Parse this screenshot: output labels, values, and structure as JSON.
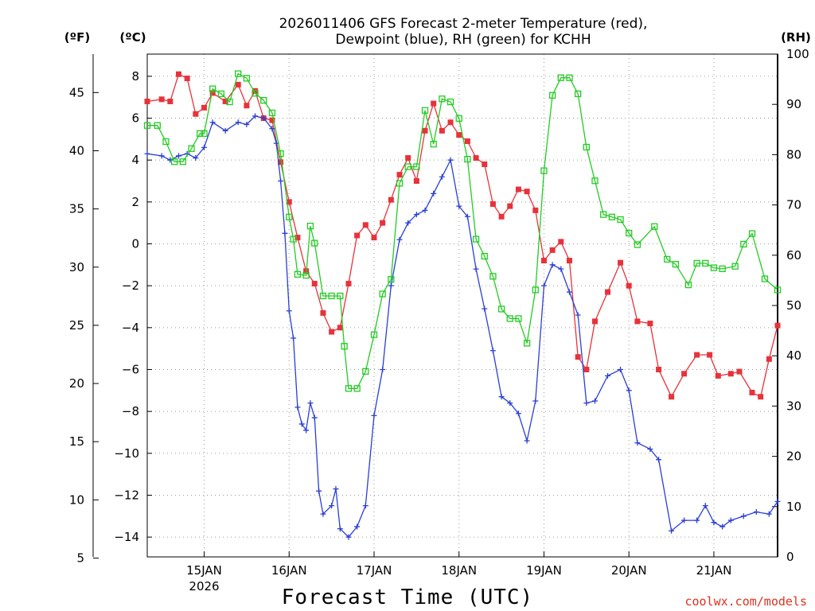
{
  "chart_data": {
    "type": "line",
    "title_line1": "2026011406 GFS Forecast 2-meter Temperature (red),",
    "title_line2": "Dewpoint (blue), RH (green) for KCHH",
    "xlabel": "Forecast Time (UTC)",
    "credit": "coolwx.com/models",
    "units": {
      "fahrenheit": "(ºF)",
      "celsius": "(ºC)",
      "rh": "(RH)"
    },
    "x_axis": {
      "start_day": 14.33,
      "end_day": 21.75,
      "grid_days": [
        15,
        16,
        17,
        18,
        19,
        20,
        21
      ]
    },
    "x_ticks": [
      {
        "day": 15,
        "label": "15JAN",
        "sub": "2026"
      },
      {
        "day": 16,
        "label": "16JAN",
        "sub": ""
      },
      {
        "day": 17,
        "label": "17JAN",
        "sub": ""
      },
      {
        "day": 18,
        "label": "18JAN",
        "sub": ""
      },
      {
        "day": 19,
        "label": "19JAN",
        "sub": ""
      },
      {
        "day": 20,
        "label": "20JAN",
        "sub": ""
      },
      {
        "day": 21,
        "label": "21JAN",
        "sub": ""
      }
    ],
    "y_celsius": {
      "min": -15,
      "max": 9,
      "ticks": [
        "8",
        "6",
        "4",
        "2",
        "0",
        "−2",
        "−4",
        "−6",
        "−8",
        "−10",
        "−12",
        "−14"
      ]
    },
    "y_fahrenheit": {
      "ticks": [
        "45",
        "40",
        "35",
        "30",
        "25",
        "20",
        "15",
        "10",
        "5"
      ]
    },
    "y_rh": {
      "min": 0,
      "max": 100,
      "ticks": [
        "100",
        "90",
        "80",
        "70",
        "60",
        "50",
        "40",
        "30",
        "20",
        "10",
        "0"
      ]
    },
    "series": [
      {
        "name": "2-meter Temperature",
        "color": "#e8323a",
        "marker": "square-filled",
        "axis": "celsius",
        "points": [
          [
            14.33,
            6.8
          ],
          [
            14.5,
            6.9
          ],
          [
            14.6,
            6.8
          ],
          [
            14.7,
            8.1
          ],
          [
            14.8,
            7.9
          ],
          [
            14.9,
            6.2
          ],
          [
            15.0,
            6.5
          ],
          [
            15.1,
            7.2
          ],
          [
            15.25,
            6.8
          ],
          [
            15.4,
            7.6
          ],
          [
            15.5,
            6.6
          ],
          [
            15.6,
            7.3
          ],
          [
            15.7,
            6.0
          ],
          [
            15.8,
            5.9
          ],
          [
            15.9,
            3.9
          ],
          [
            16.0,
            2.0
          ],
          [
            16.1,
            0.3
          ],
          [
            16.2,
            -1.3
          ],
          [
            16.3,
            -1.9
          ],
          [
            16.4,
            -3.3
          ],
          [
            16.5,
            -4.2
          ],
          [
            16.6,
            -4.0
          ],
          [
            16.7,
            -1.9
          ],
          [
            16.8,
            0.4
          ],
          [
            16.9,
            0.9
          ],
          [
            17.0,
            0.3
          ],
          [
            17.1,
            1.0
          ],
          [
            17.2,
            2.1
          ],
          [
            17.3,
            3.3
          ],
          [
            17.4,
            4.1
          ],
          [
            17.5,
            3.0
          ],
          [
            17.6,
            5.4
          ],
          [
            17.7,
            6.7
          ],
          [
            17.8,
            5.4
          ],
          [
            17.9,
            5.8
          ],
          [
            18.0,
            5.2
          ],
          [
            18.1,
            4.9
          ],
          [
            18.2,
            4.1
          ],
          [
            18.3,
            3.8
          ],
          [
            18.4,
            1.9
          ],
          [
            18.5,
            1.3
          ],
          [
            18.6,
            1.8
          ],
          [
            18.7,
            2.6
          ],
          [
            18.8,
            2.5
          ],
          [
            18.9,
            1.6
          ],
          [
            19.0,
            -0.8
          ],
          [
            19.1,
            -0.3
          ],
          [
            19.2,
            0.1
          ],
          [
            19.3,
            -0.8
          ],
          [
            19.4,
            -5.4
          ],
          [
            19.5,
            -6.0
          ],
          [
            19.6,
            -3.7
          ],
          [
            19.75,
            -2.3
          ],
          [
            19.9,
            -0.9
          ],
          [
            20.0,
            -2.0
          ],
          [
            20.1,
            -3.7
          ],
          [
            20.25,
            -3.8
          ],
          [
            20.35,
            -6.0
          ],
          [
            20.5,
            -7.3
          ],
          [
            20.65,
            -6.2
          ],
          [
            20.8,
            -5.3
          ],
          [
            20.95,
            -5.3
          ],
          [
            21.05,
            -6.3
          ],
          [
            21.2,
            -6.2
          ],
          [
            21.3,
            -6.1
          ],
          [
            21.45,
            -7.1
          ],
          [
            21.55,
            -7.3
          ],
          [
            21.65,
            -5.5
          ],
          [
            21.75,
            -3.9
          ]
        ]
      },
      {
        "name": "Dewpoint",
        "color": "#2a3fd6",
        "marker": "plus",
        "axis": "celsius",
        "points": [
          [
            14.33,
            4.3
          ],
          [
            14.5,
            4.2
          ],
          [
            14.6,
            4.0
          ],
          [
            14.7,
            4.2
          ],
          [
            14.8,
            4.3
          ],
          [
            14.9,
            4.1
          ],
          [
            15.0,
            4.6
          ],
          [
            15.1,
            5.8
          ],
          [
            15.25,
            5.4
          ],
          [
            15.4,
            5.8
          ],
          [
            15.5,
            5.7
          ],
          [
            15.6,
            6.1
          ],
          [
            15.7,
            6.0
          ],
          [
            15.8,
            5.5
          ],
          [
            15.85,
            4.8
          ],
          [
            15.9,
            3.0
          ],
          [
            15.95,
            0.5
          ],
          [
            16.0,
            -3.2
          ],
          [
            16.05,
            -4.5
          ],
          [
            16.1,
            -7.8
          ],
          [
            16.15,
            -8.6
          ],
          [
            16.2,
            -8.9
          ],
          [
            16.25,
            -7.6
          ],
          [
            16.3,
            -8.3
          ],
          [
            16.35,
            -11.8
          ],
          [
            16.4,
            -12.9
          ],
          [
            16.5,
            -12.5
          ],
          [
            16.55,
            -11.7
          ],
          [
            16.6,
            -13.6
          ],
          [
            16.7,
            -14.0
          ],
          [
            16.8,
            -13.5
          ],
          [
            16.9,
            -12.5
          ],
          [
            17.0,
            -8.2
          ],
          [
            17.1,
            -6.0
          ],
          [
            17.2,
            -2.0
          ],
          [
            17.3,
            0.2
          ],
          [
            17.4,
            1.0
          ],
          [
            17.5,
            1.4
          ],
          [
            17.6,
            1.6
          ],
          [
            17.7,
            2.4
          ],
          [
            17.8,
            3.2
          ],
          [
            17.9,
            4.0
          ],
          [
            18.0,
            1.8
          ],
          [
            18.1,
            1.3
          ],
          [
            18.2,
            -1.2
          ],
          [
            18.3,
            -3.1
          ],
          [
            18.4,
            -5.1
          ],
          [
            18.5,
            -7.3
          ],
          [
            18.6,
            -7.6
          ],
          [
            18.7,
            -8.1
          ],
          [
            18.8,
            -9.4
          ],
          [
            18.9,
            -7.5
          ],
          [
            19.0,
            -2.0
          ],
          [
            19.1,
            -1.0
          ],
          [
            19.2,
            -1.2
          ],
          [
            19.3,
            -2.3
          ],
          [
            19.4,
            -3.4
          ],
          [
            19.5,
            -7.6
          ],
          [
            19.6,
            -7.5
          ],
          [
            19.75,
            -6.3
          ],
          [
            19.9,
            -6.0
          ],
          [
            20.0,
            -7.0
          ],
          [
            20.1,
            -9.5
          ],
          [
            20.25,
            -9.8
          ],
          [
            20.35,
            -10.3
          ],
          [
            20.5,
            -13.7
          ],
          [
            20.65,
            -13.2
          ],
          [
            20.8,
            -13.2
          ],
          [
            20.9,
            -12.5
          ],
          [
            21.0,
            -13.3
          ],
          [
            21.1,
            -13.5
          ],
          [
            21.2,
            -13.2
          ],
          [
            21.35,
            -13.0
          ],
          [
            21.5,
            -12.8
          ],
          [
            21.65,
            -12.9
          ],
          [
            21.75,
            -12.3
          ]
        ]
      },
      {
        "name": "RH",
        "color": "#22cc22",
        "marker": "square-open",
        "axis": "rh",
        "points": [
          [
            14.33,
            85.8
          ],
          [
            14.45,
            85.8
          ],
          [
            14.55,
            82.6
          ],
          [
            14.65,
            78.6
          ],
          [
            14.75,
            78.6
          ],
          [
            14.85,
            81.2
          ],
          [
            14.95,
            84.2
          ],
          [
            15.0,
            84.2
          ],
          [
            15.1,
            93.1
          ],
          [
            15.2,
            92.1
          ],
          [
            15.3,
            90.5
          ],
          [
            15.4,
            96.1
          ],
          [
            15.5,
            95.2
          ],
          [
            15.6,
            92.2
          ],
          [
            15.7,
            90.8
          ],
          [
            15.8,
            88.3
          ],
          [
            15.9,
            80.2
          ],
          [
            16.0,
            67.6
          ],
          [
            16.05,
            63.2
          ],
          [
            16.1,
            56.2
          ],
          [
            16.2,
            56.0
          ],
          [
            16.25,
            65.8
          ],
          [
            16.3,
            62.4
          ],
          [
            16.4,
            51.9
          ],
          [
            16.5,
            51.9
          ],
          [
            16.6,
            51.9
          ],
          [
            16.65,
            41.9
          ],
          [
            16.7,
            33.5
          ],
          [
            16.8,
            33.5
          ],
          [
            16.9,
            36.9
          ],
          [
            17.0,
            44.2
          ],
          [
            17.1,
            52.3
          ],
          [
            17.2,
            55.2
          ],
          [
            17.3,
            74.3
          ],
          [
            17.4,
            77.6
          ],
          [
            17.5,
            77.6
          ],
          [
            17.6,
            88.8
          ],
          [
            17.7,
            82.1
          ],
          [
            17.8,
            91.1
          ],
          [
            17.9,
            90.5
          ],
          [
            18.0,
            87.2
          ],
          [
            18.1,
            79.1
          ],
          [
            18.2,
            63.2
          ],
          [
            18.3,
            59.8
          ],
          [
            18.4,
            55.8
          ],
          [
            18.5,
            49.3
          ],
          [
            18.6,
            47.4
          ],
          [
            18.7,
            47.4
          ],
          [
            18.8,
            42.5
          ],
          [
            18.9,
            53.1
          ],
          [
            19.0,
            76.8
          ],
          [
            19.1,
            91.8
          ],
          [
            19.2,
            95.3
          ],
          [
            19.3,
            95.3
          ],
          [
            19.4,
            92.1
          ],
          [
            19.5,
            81.5
          ],
          [
            19.6,
            74.8
          ],
          [
            19.7,
            68.1
          ],
          [
            19.8,
            67.6
          ],
          [
            19.9,
            67.1
          ],
          [
            20.0,
            64.4
          ],
          [
            20.1,
            62.1
          ],
          [
            20.3,
            65.7
          ],
          [
            20.45,
            59.2
          ],
          [
            20.55,
            58.2
          ],
          [
            20.7,
            54.1
          ],
          [
            20.8,
            58.4
          ],
          [
            20.9,
            58.4
          ],
          [
            21.0,
            57.5
          ],
          [
            21.1,
            57.3
          ],
          [
            21.25,
            57.8
          ],
          [
            21.35,
            62.2
          ],
          [
            21.45,
            64.3
          ],
          [
            21.6,
            55.3
          ],
          [
            21.75,
            53.1
          ]
        ]
      }
    ]
  }
}
